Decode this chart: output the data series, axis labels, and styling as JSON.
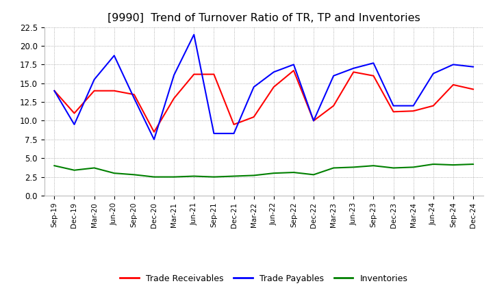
{
  "title": "[9990]  Trend of Turnover Ratio of TR, TP and Inventories",
  "x_labels": [
    "Sep-19",
    "Dec-19",
    "Mar-20",
    "Jun-20",
    "Sep-20",
    "Dec-20",
    "Mar-21",
    "Jun-21",
    "Sep-21",
    "Dec-21",
    "Mar-22",
    "Jun-22",
    "Sep-22",
    "Dec-22",
    "Mar-23",
    "Jun-23",
    "Sep-23",
    "Dec-23",
    "Mar-24",
    "Jun-24",
    "Sep-24",
    "Dec-24"
  ],
  "trade_receivables": [
    14.0,
    11.0,
    14.0,
    14.0,
    13.5,
    8.5,
    13.0,
    16.2,
    16.2,
    9.5,
    10.5,
    14.5,
    16.7,
    10.0,
    12.0,
    16.5,
    16.0,
    11.2,
    11.3,
    12.0,
    14.8,
    14.2
  ],
  "trade_payables": [
    14.0,
    9.5,
    15.5,
    18.7,
    13.0,
    7.5,
    16.1,
    21.5,
    8.3,
    8.3,
    14.5,
    16.5,
    17.5,
    10.0,
    16.0,
    17.0,
    17.7,
    12.0,
    12.0,
    16.3,
    17.5,
    17.2
  ],
  "inventories": [
    4.0,
    3.4,
    3.7,
    3.0,
    2.8,
    2.5,
    2.5,
    2.6,
    2.5,
    2.6,
    2.7,
    3.0,
    3.1,
    2.8,
    3.7,
    3.8,
    4.0,
    3.7,
    3.8,
    4.2,
    4.1,
    4.2
  ],
  "ylim": [
    0.0,
    22.5
  ],
  "yticks": [
    0.0,
    2.5,
    5.0,
    7.5,
    10.0,
    12.5,
    15.0,
    17.5,
    20.0,
    22.5
  ],
  "color_tr": "#ff0000",
  "color_tp": "#0000ff",
  "color_inv": "#008000",
  "background_color": "#ffffff",
  "grid_color": "#aaaaaa",
  "title_fontsize": 11.5,
  "legend_labels": [
    "Trade Receivables",
    "Trade Payables",
    "Inventories"
  ]
}
